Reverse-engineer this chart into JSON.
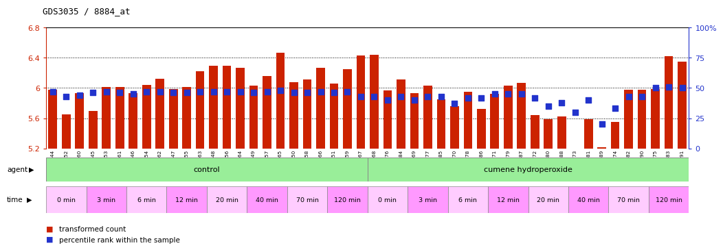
{
  "title": "GDS3035 / 8884_at",
  "gsm_labels": [
    "GSM184944",
    "GSM184952",
    "GSM184960",
    "GSM184945",
    "GSM184953",
    "GSM184961",
    "GSM184946",
    "GSM184954",
    "GSM184962",
    "GSM184947",
    "GSM184955",
    "GSM184963",
    "GSM184948",
    "GSM184956",
    "GSM184964",
    "GSM184949",
    "GSM184957",
    "GSM184965",
    "GSM184950",
    "GSM184958",
    "GSM184966",
    "GSM184951",
    "GSM184959",
    "GSM184967",
    "GSM184968",
    "GSM184976",
    "GSM184984",
    "GSM184969",
    "GSM184977",
    "GSM184985",
    "GSM184970",
    "GSM184978",
    "GSM184986",
    "GSM184971",
    "GSM184979",
    "GSM184987",
    "GSM184972",
    "GSM184980",
    "GSM184988",
    "GSM184973",
    "GSM184981",
    "GSM184989",
    "GSM184974",
    "GSM184982",
    "GSM184990",
    "GSM184975",
    "GSM184983",
    "GSM184991"
  ],
  "bar_values": [
    5.98,
    5.65,
    5.93,
    5.7,
    6.01,
    6.01,
    5.93,
    6.04,
    6.12,
    5.99,
    6.01,
    6.22,
    6.29,
    6.29,
    6.27,
    6.03,
    6.16,
    6.47,
    6.08,
    6.11,
    6.27,
    6.06,
    6.25,
    6.43,
    6.44,
    5.97,
    6.11,
    5.93,
    6.03,
    5.85,
    5.76,
    5.95,
    5.72,
    5.92,
    6.03,
    6.07,
    5.64,
    5.59,
    5.62,
    5.17,
    5.59,
    5.22,
    5.55,
    5.98,
    5.98,
    5.99,
    6.42,
    6.35
  ],
  "percentile_values": [
    47,
    43,
    44,
    46,
    47,
    46,
    45,
    47,
    47,
    46,
    46,
    47,
    47,
    47,
    47,
    46,
    47,
    48,
    46,
    46,
    47,
    46,
    47,
    43,
    43,
    40,
    43,
    40,
    43,
    43,
    37,
    42,
    42,
    45,
    45,
    45,
    42,
    35,
    38,
    30,
    40,
    20,
    33,
    43,
    43,
    50,
    51,
    50
  ],
  "ylim_left": [
    5.2,
    6.8
  ],
  "ylim_right": [
    0,
    100
  ],
  "yticks_left": [
    5.2,
    5.6,
    6.0,
    6.4,
    6.8
  ],
  "ytick_labels_left": [
    "5.2",
    "5.6",
    "6",
    "6.4",
    "6.8"
  ],
  "yticks_right": [
    0,
    25,
    50,
    75,
    100
  ],
  "ytick_labels_right": [
    "0",
    "25",
    "50",
    "75",
    "100%"
  ],
  "bar_color": "#cc2200",
  "dot_color": "#2233cc",
  "control_color": "#99ee99",
  "cumene_color": "#99ee99",
  "time_color_1": "#ffccff",
  "time_color_2": "#ff99ff",
  "control_label": "control",
  "cumene_label": "cumene hydroperoxide",
  "time_labels": [
    "0 min",
    "3 min",
    "6 min",
    "12 min",
    "20 min",
    "40 min",
    "70 min",
    "120 min"
  ],
  "control_count": 24,
  "cumene_count": 24,
  "samples_per_time": 3,
  "bar_width": 0.65,
  "dot_size": 30,
  "background_color": "#ffffff",
  "axes_bg": "#ffffff"
}
